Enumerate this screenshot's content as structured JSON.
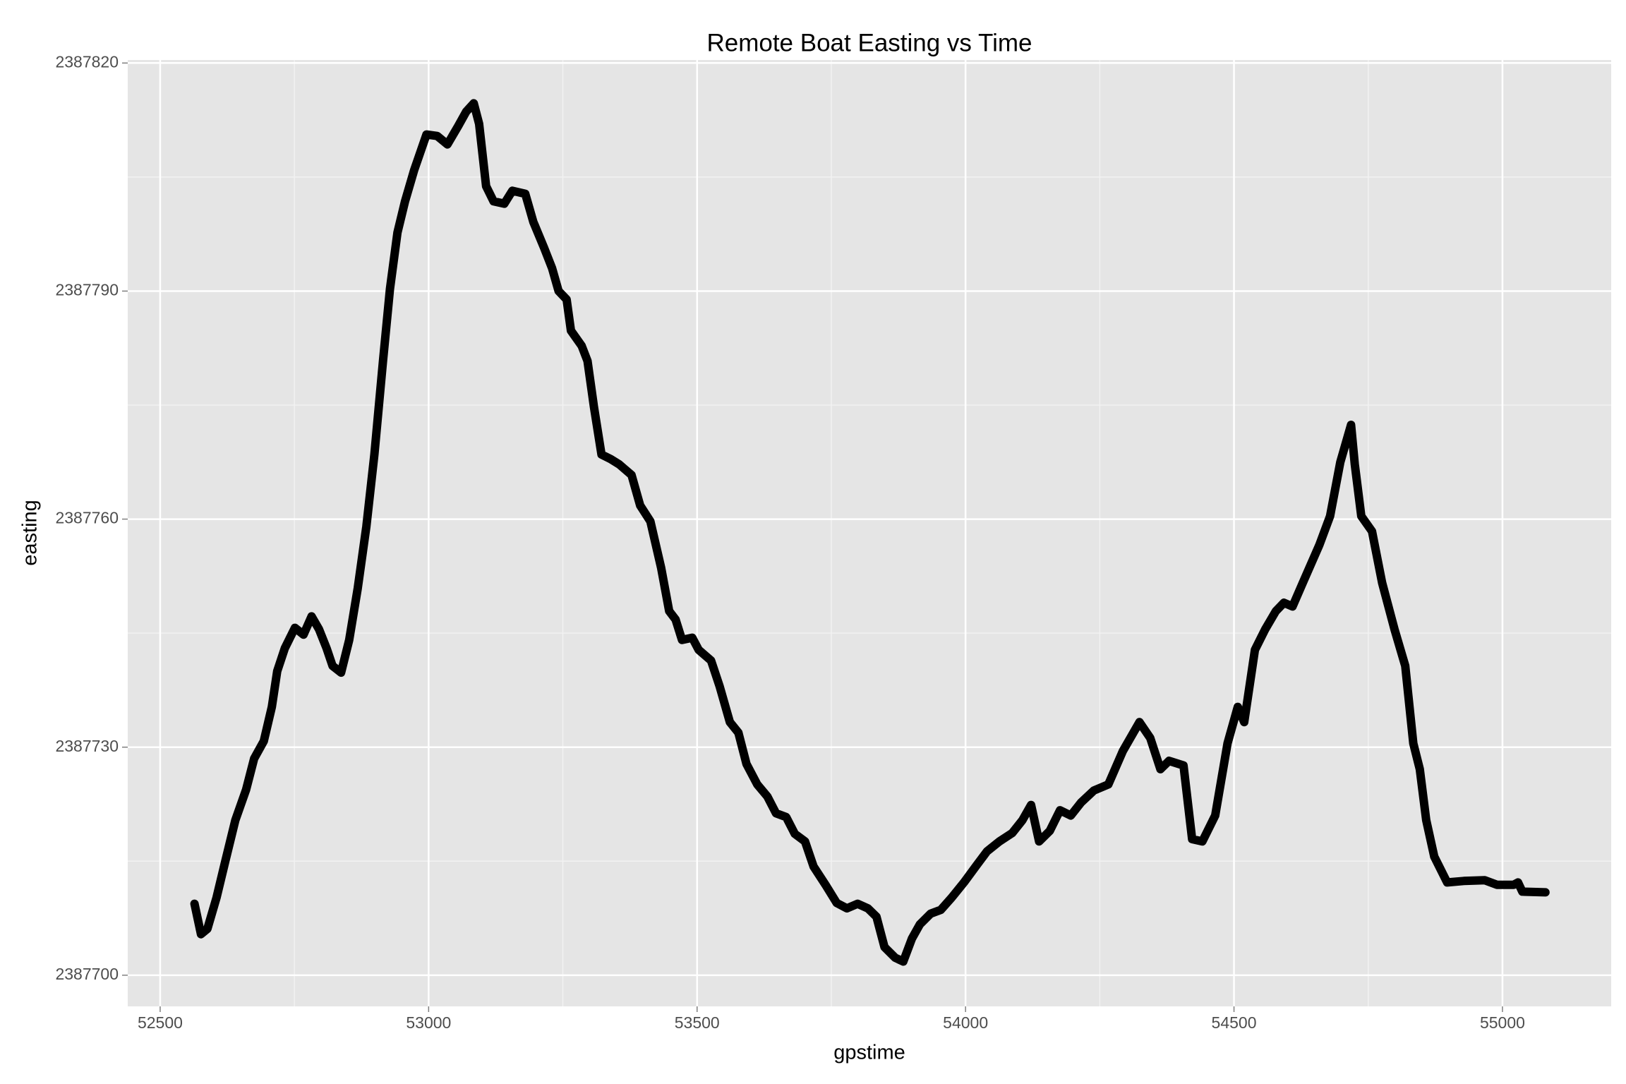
{
  "chart_data": {
    "type": "line",
    "title": "Remote Boat Easting vs Time",
    "x_label": "gpstime",
    "y_label": "easting",
    "color": "#000000",
    "grid": true,
    "minor_grid": true,
    "background": "#e5e5e5",
    "xlim": [
      52439.6,
      55202.5
    ],
    "ylim": [
      2387695.9,
      2387820.4
    ],
    "xticks": [
      52500,
      53000,
      53500,
      54000,
      54500,
      55000
    ],
    "yticks": [
      2387700,
      2387730,
      2387760,
      2387790,
      2387820
    ],
    "x": [
      52564,
      52576,
      52588,
      52605,
      52621,
      52640,
      52660,
      52675,
      52693,
      52708,
      52718,
      52732,
      52751,
      52767,
      52782,
      52796,
      52810,
      52821,
      52837,
      52852,
      52868,
      52884,
      52899,
      52915,
      52928,
      52942,
      52956,
      52973,
      52996,
      53016,
      53035,
      53055,
      53070,
      53084,
      53094,
      53107,
      53121,
      53141,
      53156,
      53180,
      53195,
      53215,
      53230,
      53242,
      53257,
      53265,
      53285,
      53296,
      53308,
      53322,
      53339,
      53355,
      53378,
      53394,
      53413,
      53433,
      53448,
      53460,
      53472,
      53491,
      53503,
      53526,
      53542,
      53561,
      53577,
      53592,
      53612,
      53631,
      53647,
      53666,
      53682,
      53701,
      53717,
      53740,
      53760,
      53779,
      53799,
      53818,
      53834,
      53849,
      53869,
      53884,
      53900,
      53915,
      53935,
      53954,
      53974,
      53997,
      54021,
      54040,
      54063,
      54087,
      54106,
      54122,
      54137,
      54157,
      54176,
      54196,
      54215,
      54239,
      54266,
      54293,
      54324,
      54344,
      54363,
      54379,
      54406,
      54422,
      54441,
      54465,
      54488,
      54507,
      54519,
      54539,
      54558,
      54578,
      54593,
      54609,
      54628,
      54659,
      54679,
      54698,
      54718,
      54725,
      54737,
      54757,
      54776,
      54799,
      54819,
      54834,
      54846,
      54858,
      54873,
      54897,
      54928,
      54967,
      54990,
      55021,
      55029,
      55037,
      55080
    ],
    "values": [
      2387709.4,
      2387705.4,
      2387706.1,
      2387710.2,
      2387714.9,
      2387720.4,
      2387724.4,
      2387728.5,
      2387730.8,
      2387735.3,
      2387740.0,
      2387743.0,
      2387745.7,
      2387744.8,
      2387747.2,
      2387745.5,
      2387743.0,
      2387740.7,
      2387739.8,
      2387744.1,
      2387750.9,
      2387759.0,
      2387768.5,
      2387780.8,
      2387790.3,
      2387797.7,
      2387801.8,
      2387805.9,
      2387810.6,
      2387810.4,
      2387809.3,
      2387811.7,
      2387813.6,
      2387814.7,
      2387812.0,
      2387803.8,
      2387801.8,
      2387801.5,
      2387803.2,
      2387802.8,
      2387799.1,
      2387795.7,
      2387793.0,
      2387790.0,
      2387788.9,
      2387784.8,
      2387782.8,
      2387780.8,
      2387774.7,
      2387768.5,
      2387767.9,
      2387767.2,
      2387765.8,
      2387761.8,
      2387759.7,
      2387753.6,
      2387747.9,
      2387746.8,
      2387744.1,
      2387744.4,
      2387742.8,
      2387741.4,
      2387738.0,
      2387733.3,
      2387731.9,
      2387727.8,
      2387725.1,
      2387723.5,
      2387721.3,
      2387720.8,
      2387718.6,
      2387717.6,
      2387714.3,
      2387711.8,
      2387709.5,
      2387708.8,
      2387709.4,
      2387708.8,
      2387707.7,
      2387703.7,
      2387702.3,
      2387701.8,
      2387704.8,
      2387706.7,
      2387708.1,
      2387708.6,
      2387710.2,
      2387712.2,
      2387714.5,
      2387716.3,
      2387717.6,
      2387718.7,
      2387720.4,
      2387722.4,
      2387717.6,
      2387719.0,
      2387721.7,
      2387721.0,
      2387722.7,
      2387724.3,
      2387725.1,
      2387729.5,
      2387733.3,
      2387731.2,
      2387727.1,
      2387728.2,
      2387727.6,
      2387717.9,
      2387717.6,
      2387721.0,
      2387730.5,
      2387735.3,
      2387733.3,
      2387742.8,
      2387745.5,
      2387747.9,
      2387749.0,
      2387748.5,
      2387751.6,
      2387756.6,
      2387760.4,
      2387767.5,
      2387772.4,
      2387767.2,
      2387760.4,
      2387758.4,
      2387751.6,
      2387745.5,
      2387740.7,
      2387730.5,
      2387727.1,
      2387720.4,
      2387715.6,
      2387712.2,
      2387712.4,
      2387712.5,
      2387711.9,
      2387711.9,
      2387712.2,
      2387711.0,
      2387710.9
    ]
  }
}
